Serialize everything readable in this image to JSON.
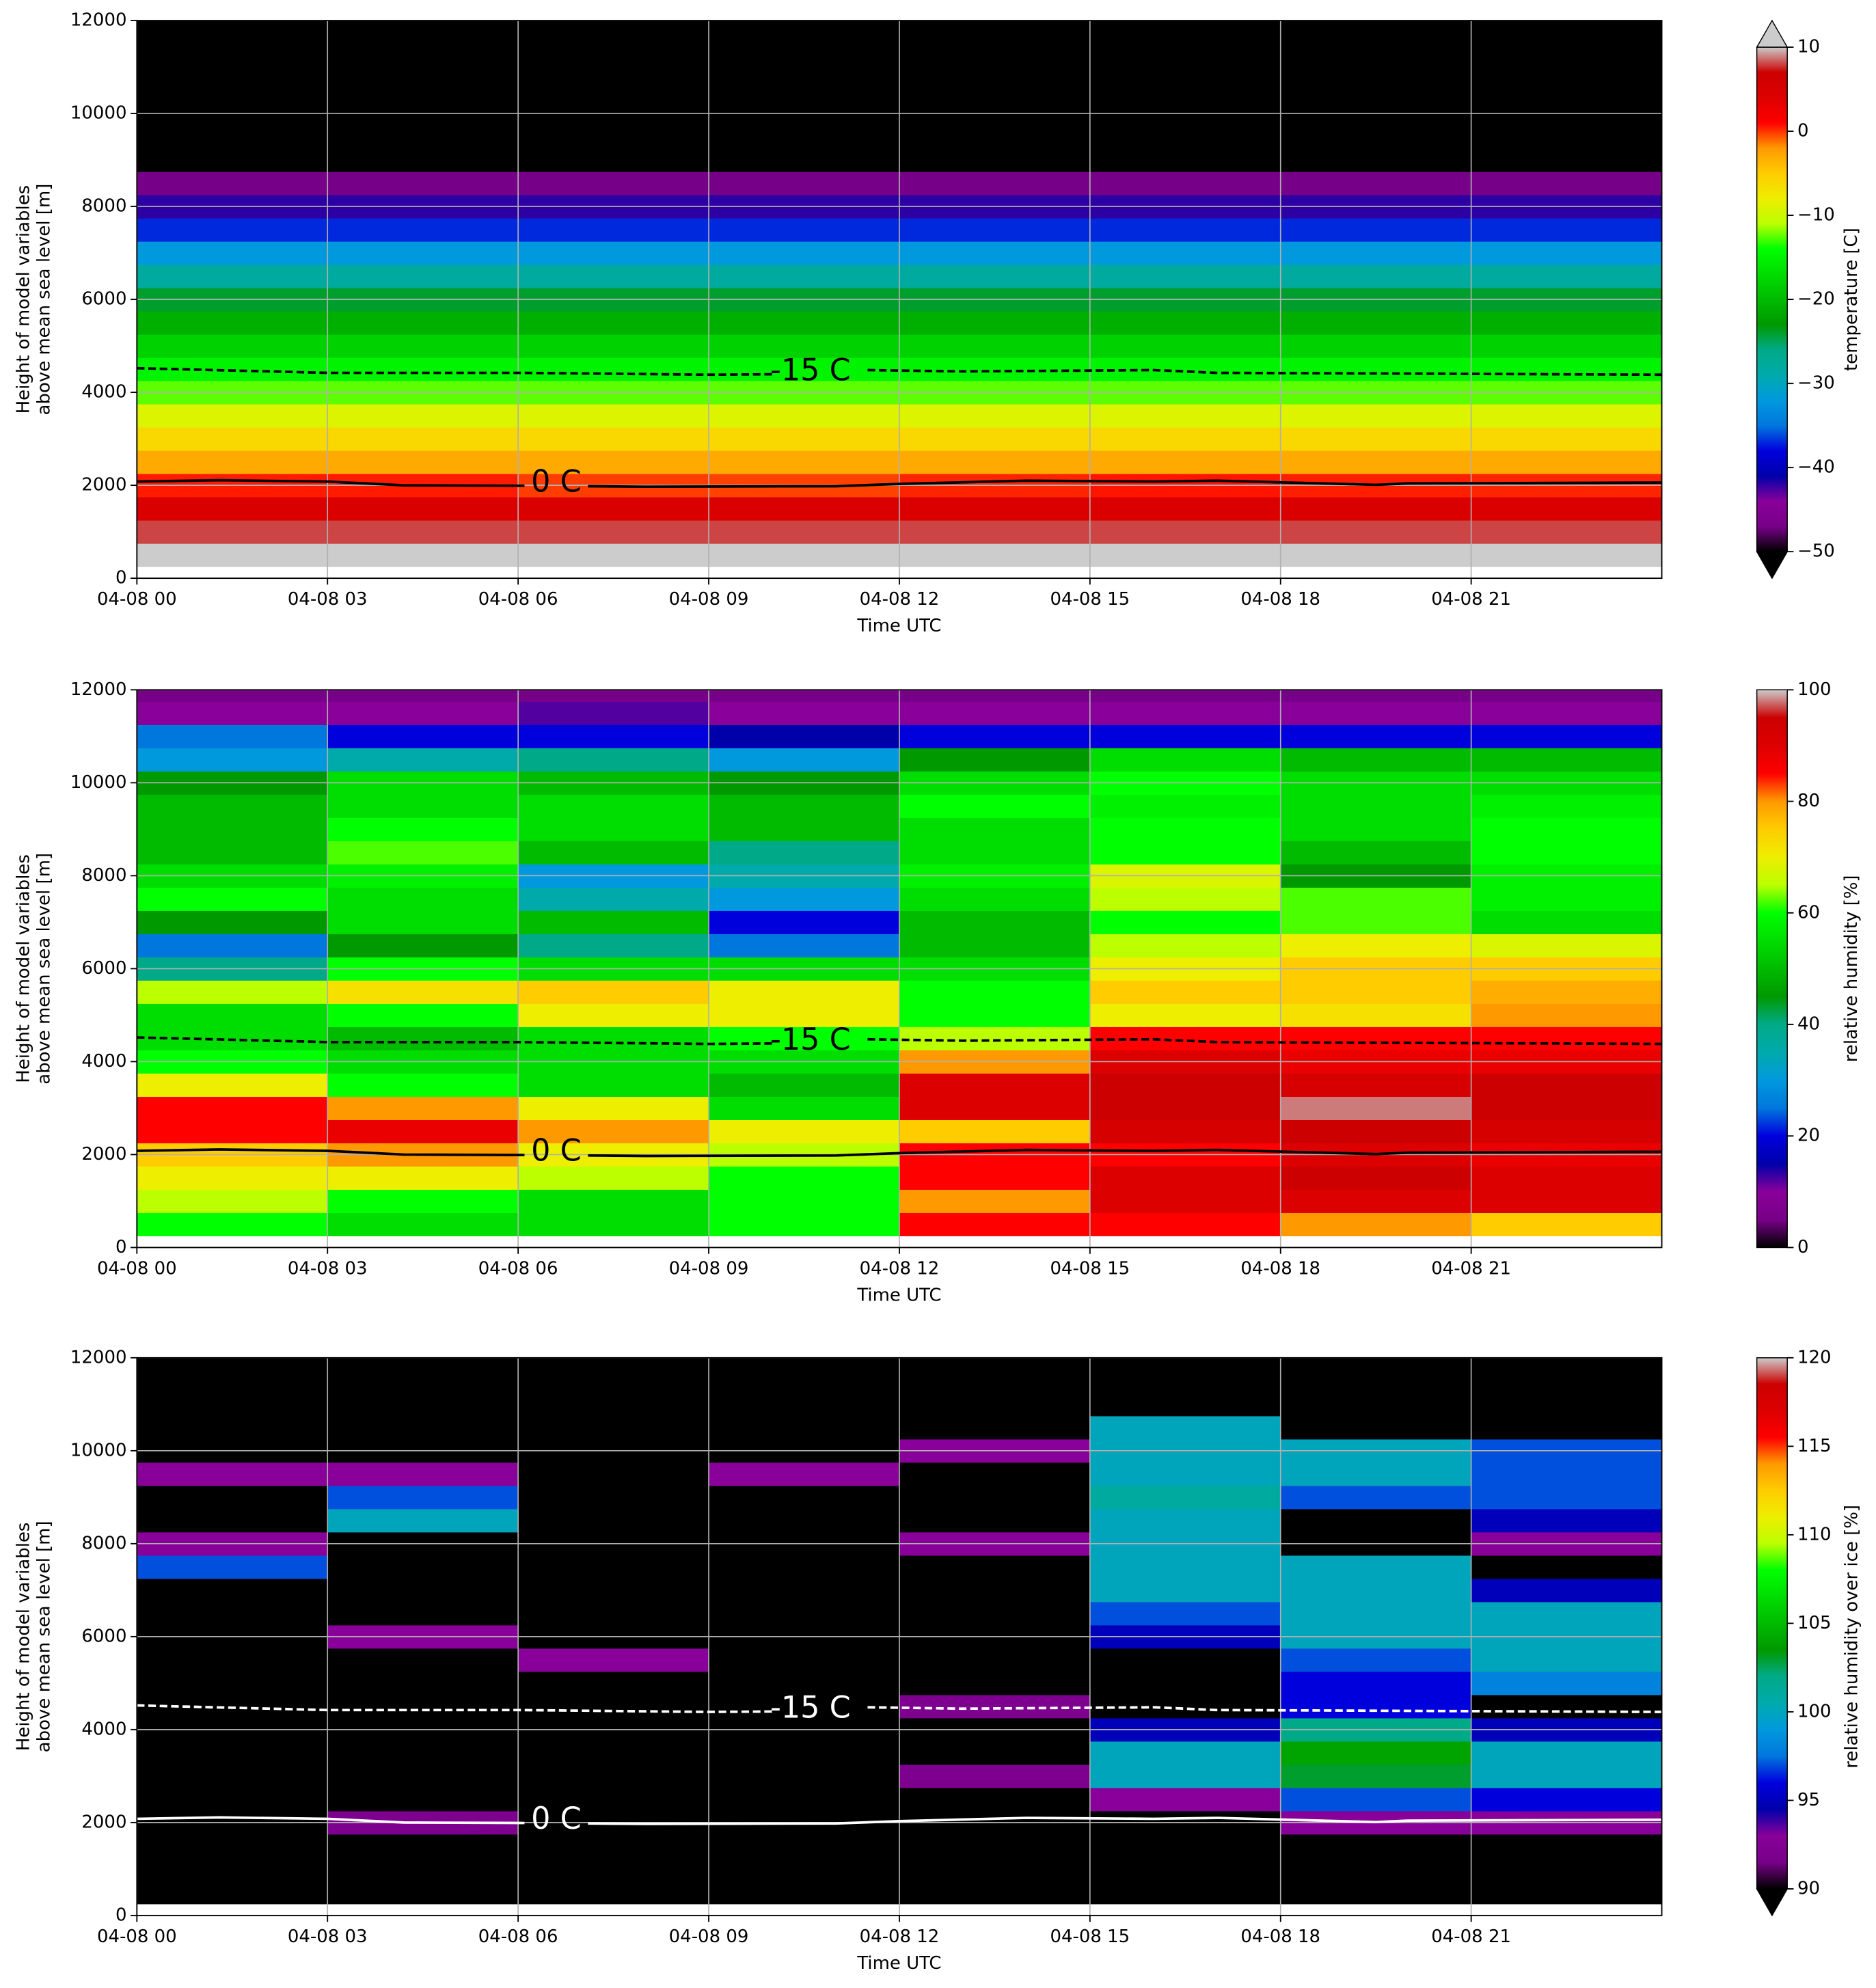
{
  "chart_data": [
    {
      "type": "heatmap",
      "xlabel": "Time UTC",
      "ylabel": [
        "Height of model variables",
        "above mean sea level [m]"
      ],
      "xlim": [
        0,
        24
      ],
      "ylim": [
        0,
        12000
      ],
      "grid": true,
      "xticks": [
        {
          "value": 0,
          "label": "04-08 00"
        },
        {
          "value": 3,
          "label": "04-08 03"
        },
        {
          "value": 6,
          "label": "04-08 06"
        },
        {
          "value": 9,
          "label": "04-08 09"
        },
        {
          "value": 12,
          "label": "04-08 12"
        },
        {
          "value": 15,
          "label": "04-08 15"
        },
        {
          "value": 18,
          "label": "04-08 18"
        },
        {
          "value": 21,
          "label": "04-08 21"
        }
      ],
      "yticks": [
        0,
        2000,
        4000,
        6000,
        8000,
        10000,
        12000
      ],
      "x_bins": [
        0,
        3,
        6,
        9,
        12,
        15,
        18,
        21,
        24
      ],
      "y_bins": [
        250,
        750,
        1250,
        1750,
        2250,
        2750,
        3250,
        3750,
        4250,
        4750,
        5250,
        5750,
        6250,
        6750,
        7250,
        7750,
        8250,
        8750,
        9250,
        9750,
        10250,
        10750,
        11250,
        11750,
        12250
      ],
      "values": [
        [
          11,
          11,
          10.5,
          10.5,
          11,
          11,
          11,
          11
        ],
        [
          8,
          8,
          8,
          8,
          8,
          8,
          8,
          8
        ],
        [
          4.5,
          4.5,
          4.5,
          4.5,
          4.5,
          4.5,
          4.5,
          4.5
        ],
        [
          0.5,
          0.5,
          -0.2,
          -0.3,
          0.3,
          0.6,
          0.4,
          0.3
        ],
        [
          -3,
          -3,
          -3,
          -3,
          -3,
          -3,
          -3,
          -3
        ],
        [
          -6,
          -6,
          -6,
          -6,
          -6,
          -6,
          -6,
          -6
        ],
        [
          -9,
          -9,
          -9,
          -9,
          -9,
          -9,
          -9,
          -9
        ],
        [
          -12.5,
          -12.5,
          -12.5,
          -12.5,
          -12.5,
          -12.5,
          -12.5,
          -12.5
        ],
        [
          -15,
          -15,
          -15,
          -15,
          -15,
          -15,
          -15,
          -15
        ],
        [
          -18,
          -18,
          -18,
          -18,
          -18,
          -18,
          -18,
          -18
        ],
        [
          -21,
          -21,
          -21,
          -21,
          -21,
          -21,
          -21,
          -21
        ],
        [
          -24,
          -24,
          -24,
          -24,
          -24,
          -24,
          -24,
          -24
        ],
        [
          -28,
          -28,
          -28,
          -28,
          -28,
          -28,
          -28,
          -28
        ],
        [
          -32,
          -32,
          -32,
          -32,
          -32,
          -32,
          -32,
          -32
        ],
        [
          -37,
          -37,
          -37,
          -37,
          -37,
          -37,
          -37,
          -37
        ],
        [
          -42,
          -42,
          -42,
          -42,
          -42,
          -42,
          -42,
          -42
        ],
        [
          -47,
          -47,
          -47,
          -47,
          -47,
          -47,
          -47,
          -47
        ],
        [
          -55,
          -55,
          -55,
          -55,
          -55,
          -55,
          -55,
          -55
        ],
        [
          -56,
          -56,
          -56,
          -56,
          -56,
          -56,
          -56,
          -56
        ],
        [
          -57,
          -57,
          -57,
          -57,
          -57,
          -57,
          -57,
          -57
        ],
        [
          -58,
          -58,
          -58,
          -58,
          -58,
          -58,
          -58,
          -58
        ],
        [
          -59,
          -59,
          -59,
          -59,
          -59,
          -59,
          -59,
          -59
        ],
        [
          -60,
          -60,
          -60,
          -60,
          -60,
          -60,
          -60,
          -60
        ],
        [
          -60,
          -60,
          -60,
          -60,
          -60,
          -60,
          -60,
          -60
        ]
      ],
      "contours": [
        {
          "name": "0 C",
          "linestyle": "solid",
          "color": "#000000",
          "x": [
            0,
            1.3,
            3,
            4.2,
            6.1,
            6.6,
            7.1,
            8,
            11,
            12,
            14,
            16,
            17,
            19.5,
            20,
            24
          ],
          "values": [
            2080,
            2110,
            2080,
            2000,
            1990,
            null,
            1980,
            1970,
            1980,
            2030,
            2100,
            2080,
            2100,
            2010,
            2040,
            2060
          ]
        },
        {
          "name": "-15 C",
          "linestyle": "dashed",
          "color": "#000000",
          "x": [
            0,
            3,
            6,
            9,
            10,
            10.6,
            11.5,
            13,
            16,
            17,
            24
          ],
          "values": [
            4520,
            4420,
            4420,
            4380,
            4390,
            null,
            4480,
            4450,
            4480,
            4420,
            4380
          ]
        }
      ],
      "colorbar": {
        "label": "temperature [C]",
        "lim": [
          -50,
          10
        ],
        "extend": "both",
        "ticks": [
          {
            "value": -50,
            "label": "−50"
          },
          {
            "value": -40,
            "label": "−40"
          },
          {
            "value": -30,
            "label": "−30"
          },
          {
            "value": -20,
            "label": "−20"
          },
          {
            "value": -10,
            "label": "−10"
          },
          0,
          10
        ]
      }
    },
    {
      "type": "heatmap",
      "xlabel": "Time UTC",
      "ylabel": [
        "Height of model variables",
        "above mean sea level [m]"
      ],
      "xlim": [
        0,
        24
      ],
      "ylim": [
        0,
        12000
      ],
      "grid": true,
      "xticks": [
        {
          "value": 0,
          "label": "04-08 00"
        },
        {
          "value": 3,
          "label": "04-08 03"
        },
        {
          "value": 6,
          "label": "04-08 06"
        },
        {
          "value": 9,
          "label": "04-08 09"
        },
        {
          "value": 12,
          "label": "04-08 12"
        },
        {
          "value": 15,
          "label": "04-08 15"
        },
        {
          "value": 18,
          "label": "04-08 18"
        },
        {
          "value": 21,
          "label": "04-08 21"
        }
      ],
      "yticks": [
        0,
        2000,
        4000,
        6000,
        8000,
        10000,
        12000
      ],
      "x_bins": [
        0,
        3,
        6,
        9,
        12,
        15,
        18,
        21,
        24
      ],
      "y_bins": [
        250,
        750,
        1250,
        1750,
        2250,
        2750,
        3250,
        3750,
        4250,
        4750,
        5250,
        5750,
        6250,
        6750,
        7250,
        7750,
        8250,
        8750,
        9250,
        9750,
        10250,
        10750,
        11250,
        11750,
        12250
      ],
      "values": [
        [
          60,
          55,
          55,
          60,
          85,
          85,
          80,
          75
        ],
        [
          65,
          60,
          55,
          60,
          80,
          90,
          90,
          90
        ],
        [
          70,
          70,
          65,
          60,
          85,
          90,
          95,
          90
        ],
        [
          75,
          80,
          70,
          65,
          85,
          85,
          90,
          88
        ],
        [
          85,
          88,
          80,
          70,
          75,
          92,
          95,
          92
        ],
        [
          85,
          80,
          70,
          55,
          90,
          95,
          98,
          95
        ],
        [
          70,
          60,
          55,
          50,
          90,
          95,
          92,
          95
        ],
        [
          60,
          55,
          55,
          55,
          80,
          90,
          88,
          88
        ],
        [
          55,
          50,
          55,
          60,
          65,
          85,
          85,
          85
        ],
        [
          55,
          60,
          70,
          70,
          60,
          70,
          72,
          80
        ],
        [
          65,
          72,
          75,
          70,
          60,
          75,
          75,
          78
        ],
        [
          40,
          60,
          55,
          55,
          55,
          70,
          75,
          75
        ],
        [
          25,
          45,
          40,
          25,
          50,
          65,
          70,
          68
        ],
        [
          45,
          55,
          50,
          20,
          50,
          60,
          62,
          55
        ],
        [
          60,
          55,
          35,
          30,
          55,
          65,
          62,
          58
        ],
        [
          55,
          58,
          30,
          35,
          58,
          68,
          45,
          58
        ],
        [
          50,
          62,
          50,
          40,
          55,
          60,
          50,
          60
        ],
        [
          50,
          60,
          55,
          50,
          55,
          60,
          55,
          60
        ],
        [
          50,
          55,
          55,
          50,
          60,
          58,
          55,
          58
        ],
        [
          45,
          55,
          50,
          45,
          55,
          60,
          55,
          55
        ],
        [
          30,
          35,
          40,
          30,
          45,
          55,
          50,
          50
        ],
        [
          25,
          20,
          20,
          15,
          20,
          20,
          20,
          20
        ],
        [
          10,
          10,
          12,
          10,
          10,
          10,
          10,
          10
        ],
        [
          5,
          5,
          5,
          5,
          5,
          5,
          5,
          5
        ]
      ],
      "contours": [
        {
          "name": "0 C",
          "linestyle": "solid",
          "color": "#000000",
          "x": [
            0,
            1.3,
            3,
            4.2,
            6.1,
            6.6,
            7.1,
            8,
            11,
            12,
            14,
            16,
            17,
            19.5,
            20,
            24
          ],
          "values": [
            2080,
            2110,
            2080,
            2000,
            1990,
            null,
            1980,
            1970,
            1980,
            2030,
            2100,
            2080,
            2100,
            2010,
            2040,
            2060
          ]
        },
        {
          "name": "-15 C",
          "linestyle": "dashed",
          "color": "#000000",
          "x": [
            0,
            3,
            6,
            9,
            10,
            10.6,
            11.5,
            13,
            16,
            17,
            24
          ],
          "values": [
            4520,
            4420,
            4420,
            4380,
            4390,
            null,
            4480,
            4450,
            4480,
            4420,
            4380
          ]
        }
      ],
      "colorbar": {
        "label": "relative humidity [%]",
        "lim": [
          0,
          100
        ],
        "extend": "neither",
        "ticks": [
          0,
          20,
          40,
          60,
          80,
          100
        ]
      }
    },
    {
      "type": "heatmap",
      "xlabel": "Time UTC",
      "ylabel": [
        "Height of model variables",
        "above mean sea level [m]"
      ],
      "xlim": [
        0,
        24
      ],
      "ylim": [
        0,
        12000
      ],
      "grid": true,
      "xticks": [
        {
          "value": 0,
          "label": "04-08 00"
        },
        {
          "value": 3,
          "label": "04-08 03"
        },
        {
          "value": 6,
          "label": "04-08 06"
        },
        {
          "value": 9,
          "label": "04-08 09"
        },
        {
          "value": 12,
          "label": "04-08 12"
        },
        {
          "value": 15,
          "label": "04-08 15"
        },
        {
          "value": 18,
          "label": "04-08 18"
        },
        {
          "value": 21,
          "label": "04-08 21"
        }
      ],
      "yticks": [
        0,
        2000,
        4000,
        6000,
        8000,
        10000,
        12000
      ],
      "x_bins": [
        0,
        3,
        6,
        9,
        12,
        15,
        18,
        21,
        24
      ],
      "y_bins": [
        250,
        750,
        1250,
        1750,
        2250,
        2750,
        3250,
        3750,
        4250,
        4750,
        5250,
        5750,
        6250,
        6750,
        7250,
        7750,
        8250,
        8750,
        9250,
        9750,
        10250,
        10750,
        11250,
        11750,
        12250
      ],
      "values": [
        [
          80,
          80,
          80,
          80,
          80,
          80,
          80,
          80
        ],
        [
          80,
          80,
          80,
          80,
          80,
          80,
          80,
          80
        ],
        [
          80,
          80,
          80,
          80,
          80,
          80,
          80,
          80
        ],
        [
          80,
          92,
          80,
          80,
          80,
          80,
          93,
          93
        ],
        [
          80,
          80,
          80,
          80,
          80,
          93,
          97,
          96
        ],
        [
          80,
          80,
          80,
          80,
          92,
          100,
          103,
          100
        ],
        [
          80,
          80,
          80,
          80,
          80,
          100,
          104,
          100
        ],
        [
          80,
          80,
          80,
          80,
          80,
          95,
          102,
          95
        ],
        [
          80,
          80,
          80,
          80,
          92,
          80,
          96,
          80
        ],
        [
          80,
          80,
          80,
          80,
          80,
          80,
          96,
          98
        ],
        [
          80,
          80,
          93,
          80,
          80,
          80,
          97,
          100
        ],
        [
          80,
          93,
          80,
          80,
          80,
          95,
          100,
          100
        ],
        [
          80,
          80,
          80,
          80,
          80,
          97,
          100,
          100
        ],
        [
          80,
          80,
          80,
          80,
          80,
          100,
          100,
          95
        ],
        [
          97,
          80,
          80,
          80,
          80,
          100,
          100,
          80
        ],
        [
          93,
          80,
          80,
          80,
          93,
          100,
          80,
          93
        ],
        [
          80,
          100,
          80,
          80,
          80,
          100,
          80,
          95
        ],
        [
          80,
          97,
          80,
          80,
          80,
          101,
          97,
          97
        ],
        [
          93,
          93,
          80,
          93,
          80,
          100,
          100,
          97
        ],
        [
          80,
          80,
          80,
          80,
          93,
          100,
          100,
          97
        ],
        [
          80,
          80,
          80,
          80,
          80,
          100,
          80,
          80
        ],
        [
          80,
          80,
          80,
          80,
          80,
          80,
          80,
          80
        ],
        [
          80,
          80,
          80,
          80,
          80,
          80,
          80,
          80
        ],
        [
          80,
          80,
          80,
          80,
          80,
          80,
          80,
          80
        ]
      ],
      "contours": [
        {
          "name": "0 C",
          "linestyle": "solid",
          "color": "#ffffff",
          "x": [
            0,
            1.3,
            3,
            4.2,
            6.1,
            6.6,
            7.1,
            8,
            11,
            12,
            14,
            16,
            17,
            19.5,
            20,
            24
          ],
          "values": [
            2080,
            2110,
            2080,
            2000,
            1990,
            null,
            1980,
            1970,
            1980,
            2030,
            2100,
            2080,
            2100,
            2010,
            2040,
            2060
          ]
        },
        {
          "name": "-15 C",
          "linestyle": "dashed",
          "color": "#ffffff",
          "x": [
            0,
            3,
            6,
            9,
            10,
            10.6,
            11.5,
            13,
            16,
            17,
            24
          ],
          "values": [
            4520,
            4420,
            4420,
            4380,
            4390,
            null,
            4480,
            4450,
            4480,
            4420,
            4380
          ]
        }
      ],
      "colorbar": {
        "label": "relative humidity over ice [%]",
        "lim": [
          90,
          120
        ],
        "extend": "min",
        "ticks": [
          90,
          95,
          100,
          105,
          110,
          115,
          120
        ]
      }
    }
  ]
}
